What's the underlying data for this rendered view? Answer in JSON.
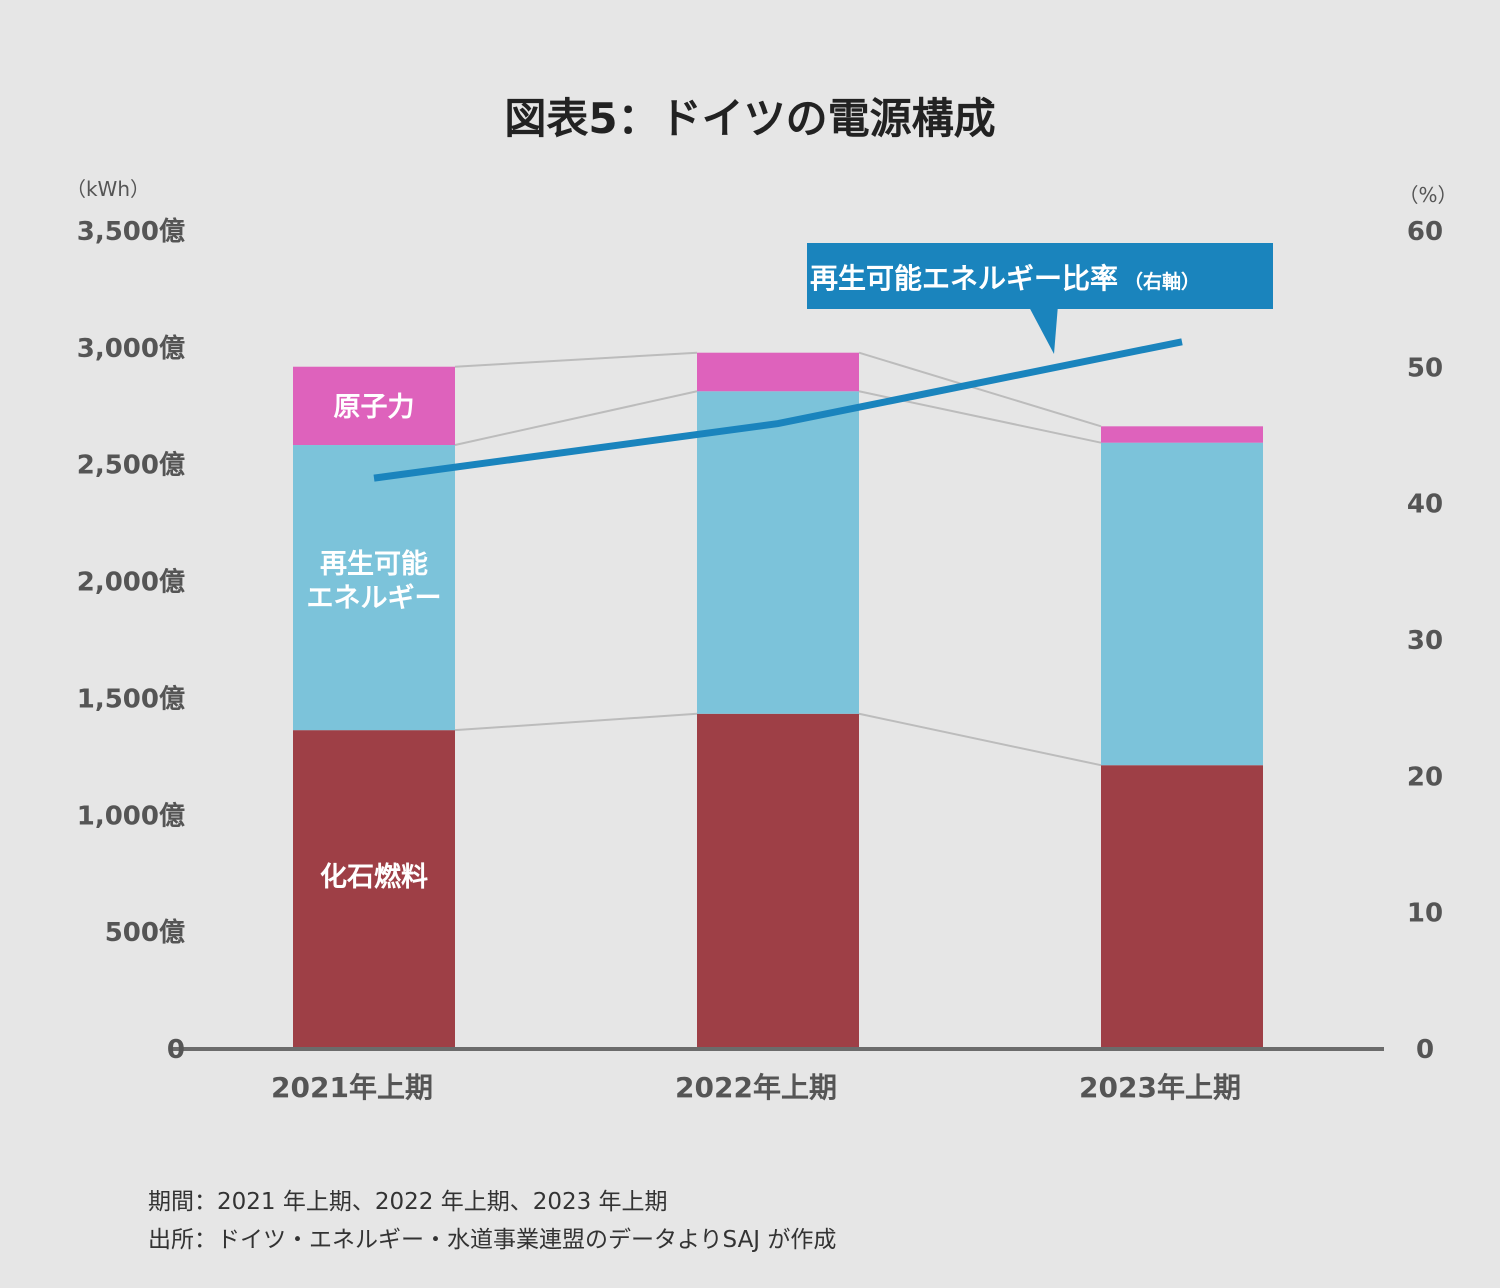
{
  "title": "図表5：ドイツの電源構成",
  "notes": {
    "period": "期間：2021 年上期、2022 年上期、2023 年上期",
    "source": "出所：ドイツ・エネルギー・水道事業連盟のデータよりSAJ が作成"
  },
  "colors": {
    "fossil": "#9e3f46",
    "renewable": "#7cc3da",
    "nuclear": "#de62bc",
    "ratio_line": "#1a84bd",
    "connector": "#bcbcbc",
    "baseline": "#6b6b6b"
  },
  "chart_data": {
    "type": "bar",
    "stacked": true,
    "categories": [
      "2021年上期",
      "2022年上期",
      "2023年上期"
    ],
    "left_axis": {
      "unit": "（kWh）",
      "ylim": [
        0,
        3500
      ],
      "ticks": [
        0,
        500,
        1000,
        1500,
        2000,
        2500,
        3000,
        3500
      ],
      "tick_labels": [
        "0",
        "500億",
        "1,000億",
        "1,500億",
        "2,000億",
        "2,500億",
        "3,000億",
        "3,500億"
      ]
    },
    "right_axis": {
      "unit": "（%）",
      "ylim": [
        0,
        60
      ],
      "ticks": [
        0,
        10,
        20,
        30,
        40,
        50,
        60
      ],
      "tick_labels": [
        "0",
        "10",
        "20",
        "30",
        "40",
        "50",
        "60"
      ]
    },
    "series": [
      {
        "name": "化石燃料",
        "key": "fossil",
        "values": [
          1360,
          1430,
          1210
        ]
      },
      {
        "name": "再生可能エネルギー",
        "key": "renewable",
        "label_lines": [
          "再生可能",
          "エネルギー"
        ],
        "values": [
          1220,
          1380,
          1380
        ]
      },
      {
        "name": "原子力",
        "key": "nuclear",
        "values": [
          335,
          165,
          70
        ]
      }
    ],
    "line": {
      "name": "再生可能エネルギー比率",
      "axis_note": "（右軸）",
      "values": [
        41.8,
        45.8,
        51.8
      ]
    },
    "grid": false,
    "legend": "inline-labels"
  }
}
